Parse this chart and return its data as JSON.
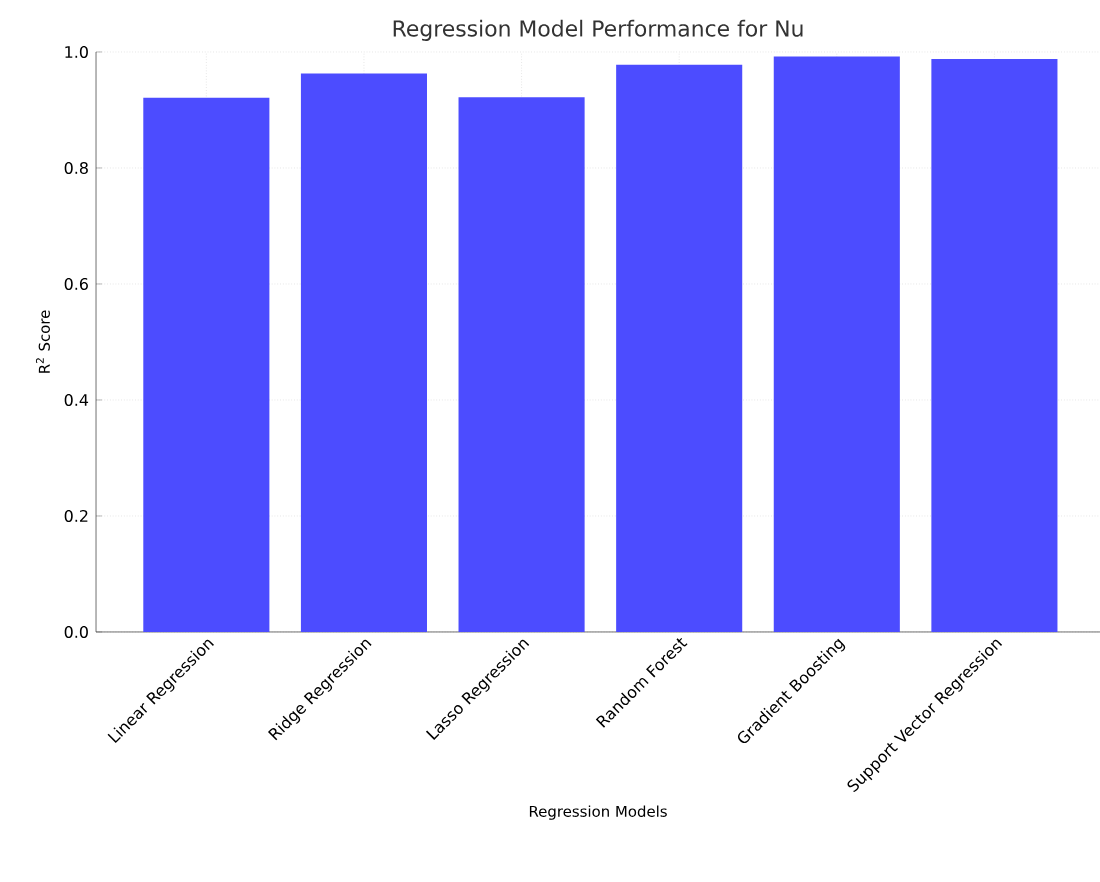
{
  "chart_data": {
    "type": "bar",
    "title": "Regression Model Performance for Nu",
    "xlabel": "Regression Models",
    "ylabel": "R$^{2}$ Score",
    "categories": [
      "Linear Regression",
      "Ridge Regression",
      "Lasso Regression",
      "Random Forest",
      "Gradient Boosting",
      "Support Vector Regression"
    ],
    "values": [
      0.921,
      0.963,
      0.922,
      0.978,
      0.992,
      0.988
    ],
    "color": "#4c4cff",
    "ylim": [
      0,
      1
    ],
    "yticks": [
      {
        "value": 0,
        "label": "0.0"
      },
      0.2,
      0.4,
      0.6,
      0.8,
      {
        "value": 1,
        "label": "1.0"
      }
    ],
    "grid": true
  }
}
